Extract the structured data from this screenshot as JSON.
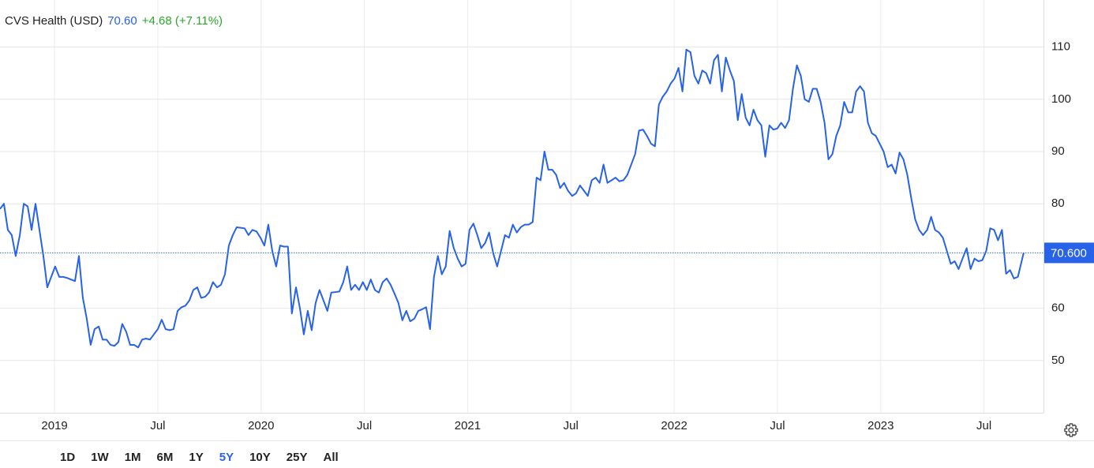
{
  "header": {
    "title": "CVS Health (USD)",
    "price": "70.60",
    "change": "+4.68 (+7.11%)"
  },
  "chart_data": {
    "type": "line",
    "x": [
      2018.736,
      2018.755,
      2018.774,
      2018.793,
      2018.812,
      2018.832,
      2018.851,
      2018.87,
      2018.889,
      2018.908,
      2018.927,
      2018.946,
      2018.965,
      2018.984,
      2019.003,
      2019.023,
      2019.042,
      2019.061,
      2019.08,
      2019.099,
      2019.118,
      2019.137,
      2019.156,
      2019.175,
      2019.194,
      2019.214,
      2019.233,
      2019.252,
      2019.271,
      2019.29,
      2019.309,
      2019.328,
      2019.347,
      2019.366,
      2019.385,
      2019.405,
      2019.424,
      2019.443,
      2019.462,
      2019.481,
      2019.5,
      2019.519,
      2019.538,
      2019.557,
      2019.576,
      2019.596,
      2019.615,
      2019.634,
      2019.653,
      2019.672,
      2019.691,
      2019.71,
      2019.729,
      2019.748,
      2019.767,
      2019.787,
      2019.806,
      2019.825,
      2019.844,
      2019.863,
      2019.882,
      2019.901,
      2019.92,
      2019.939,
      2019.958,
      2019.978,
      2019.997,
      2020.016,
      2020.035,
      2020.054,
      2020.073,
      2020.092,
      2020.111,
      2020.13,
      2020.149,
      2020.169,
      2020.188,
      2020.207,
      2020.226,
      2020.245,
      2020.264,
      2020.283,
      2020.302,
      2020.321,
      2020.34,
      2020.36,
      2020.379,
      2020.398,
      2020.417,
      2020.436,
      2020.455,
      2020.474,
      2020.493,
      2020.512,
      2020.531,
      2020.551,
      2020.57,
      2020.589,
      2020.608,
      2020.627,
      2020.646,
      2020.665,
      2020.684,
      2020.703,
      2020.722,
      2020.742,
      2020.761,
      2020.78,
      2020.799,
      2020.818,
      2020.837,
      2020.856,
      2020.875,
      2020.894,
      2020.913,
      2020.933,
      2020.952,
      2020.971,
      2020.99,
      2021.009,
      2021.028,
      2021.047,
      2021.066,
      2021.085,
      2021.104,
      2021.124,
      2021.143,
      2021.162,
      2021.181,
      2021.2,
      2021.219,
      2021.238,
      2021.257,
      2021.276,
      2021.295,
      2021.315,
      2021.334,
      2021.353,
      2021.372,
      2021.391,
      2021.41,
      2021.429,
      2021.448,
      2021.467,
      2021.486,
      2021.506,
      2021.525,
      2021.544,
      2021.563,
      2021.582,
      2021.601,
      2021.62,
      2021.639,
      2021.658,
      2021.677,
      2021.697,
      2021.716,
      2021.735,
      2021.754,
      2021.773,
      2021.792,
      2021.811,
      2021.83,
      2021.849,
      2021.868,
      2021.888,
      2021.907,
      2021.926,
      2021.945,
      2021.964,
      2021.983,
      2022.002,
      2022.021,
      2022.04,
      2022.059,
      2022.079,
      2022.098,
      2022.117,
      2022.136,
      2022.155,
      2022.174,
      2022.193,
      2022.212,
      2022.231,
      2022.25,
      2022.27,
      2022.289,
      2022.308,
      2022.327,
      2022.346,
      2022.365,
      2022.384,
      2022.403,
      2022.422,
      2022.441,
      2022.461,
      2022.48,
      2022.499,
      2022.518,
      2022.537,
      2022.556,
      2022.575,
      2022.594,
      2022.613,
      2022.632,
      2022.652,
      2022.671,
      2022.69,
      2022.709,
      2022.728,
      2022.747,
      2022.766,
      2022.785,
      2022.804,
      2022.823,
      2022.843,
      2022.862,
      2022.881,
      2022.9,
      2022.919,
      2022.938,
      2022.957,
      2022.976,
      2022.995,
      2023.014,
      2023.034,
      2023.053,
      2023.072,
      2023.091,
      2023.11,
      2023.129,
      2023.148,
      2023.167,
      2023.186,
      2023.205,
      2023.225,
      2023.244,
      2023.263,
      2023.282,
      2023.301,
      2023.32,
      2023.339,
      2023.358,
      2023.377,
      2023.396,
      2023.416,
      2023.435,
      2023.454,
      2023.473,
      2023.492,
      2023.511,
      2023.53,
      2023.549,
      2023.568,
      2023.587,
      2023.607,
      2023.626,
      2023.645,
      2023.664,
      2023.692
    ],
    "series": [
      {
        "color": "#2762e8",
        "values": [
          79,
          80,
          75,
          74,
          70,
          74,
          80,
          79.5,
          75,
          80,
          75,
          70,
          64,
          66,
          68,
          66,
          66,
          65.8,
          65.5,
          65.2,
          70,
          62,
          58,
          53,
          56,
          56.5,
          54,
          54,
          53,
          52.8,
          53.5,
          57,
          55.5,
          53,
          53,
          52.5,
          54,
          54.2,
          54,
          55,
          56,
          57.8,
          56,
          55.8,
          56,
          59.5,
          60.2,
          60.5,
          61.5,
          63.5,
          64,
          62,
          62.2,
          63,
          65,
          64,
          64.5,
          66.5,
          72,
          74,
          75.5,
          75.4,
          75.3,
          74,
          75,
          74.7,
          73.5,
          72,
          76,
          71,
          68,
          72,
          71.8,
          71.8,
          59,
          64,
          60,
          55,
          59.5,
          55.8,
          61,
          63.5,
          61.5,
          59.5,
          63,
          63.1,
          63.2,
          65,
          68,
          63.5,
          64.5,
          63.5,
          65,
          63.5,
          65.5,
          63.5,
          63,
          65,
          65.7,
          64.5,
          62.8,
          61,
          57.7,
          59.5,
          57.5,
          58,
          59.5,
          59.8,
          60.2,
          56,
          66,
          70,
          66.5,
          68,
          74.8,
          71.5,
          69.5,
          68,
          68.5,
          75,
          76.2,
          74,
          71.5,
          72.5,
          74.5,
          70.5,
          68,
          71,
          74,
          73.5,
          76,
          74.5,
          75.5,
          76,
          76,
          76.5,
          85,
          84.5,
          90,
          86.5,
          86.5,
          85.5,
          83,
          84,
          82.5,
          81.5,
          82,
          83.5,
          82.5,
          81.5,
          84.5,
          85,
          84,
          87.5,
          84,
          84.5,
          85,
          84.3,
          84.5,
          85.5,
          87.5,
          89.5,
          94,
          94.2,
          93,
          91.5,
          91,
          99,
          100.5,
          101.5,
          103,
          104,
          106,
          101.5,
          109.5,
          109,
          104.5,
          103,
          105.5,
          105,
          103,
          107.5,
          108.5,
          101.5,
          108,
          105.5,
          103.5,
          96,
          101,
          96.5,
          95,
          98,
          96,
          95,
          89,
          95,
          94.2,
          94.4,
          95.5,
          94.5,
          96,
          102,
          106.5,
          104.5,
          100,
          99.5,
          102,
          102,
          99.5,
          95.5,
          88.5,
          89.5,
          93,
          95,
          99.5,
          97.5,
          97.5,
          101.5,
          102.5,
          101.5,
          95.5,
          93.5,
          93,
          91.5,
          90,
          87,
          87.5,
          85.8,
          89.8,
          88.5,
          85.5,
          81,
          77,
          75,
          74,
          75,
          77.5,
          75,
          74.5,
          73.5,
          71,
          68.5,
          69,
          67.5,
          69.5,
          71.5,
          67.5,
          69.5,
          69,
          69.2,
          71,
          75.3,
          75,
          73,
          75,
          66.6,
          67.3,
          65.7,
          66,
          70.6
        ]
      }
    ],
    "xlim": [
      2018.736,
      2023.788
    ],
    "xticks": [
      {
        "value": 2019,
        "label": "2019"
      },
      {
        "value": 2019.5,
        "label": "Jul"
      },
      {
        "value": 2020,
        "label": "2020"
      },
      {
        "value": 2020.5,
        "label": "Jul"
      },
      {
        "value": 2021,
        "label": "2021"
      },
      {
        "value": 2021.5,
        "label": "Jul"
      },
      {
        "value": 2022,
        "label": "2022"
      },
      {
        "value": 2022.5,
        "label": "Jul"
      },
      {
        "value": 2023,
        "label": "2023"
      },
      {
        "value": 2023.5,
        "label": "Jul"
      }
    ],
    "ylim": [
      40,
      119
    ],
    "yticks": [
      50,
      60,
      80,
      90,
      100,
      110
    ],
    "grid": true,
    "price_line": {
      "value": 70.6,
      "label": "70.600",
      "color": "#2762e8"
    }
  },
  "range_buttons": [
    {
      "label": "1D"
    },
    {
      "label": "1W"
    },
    {
      "label": "1M"
    },
    {
      "label": "6M"
    },
    {
      "label": "1Y"
    },
    {
      "label": "5Y",
      "active": true
    },
    {
      "label": "10Y"
    },
    {
      "label": "25Y"
    },
    {
      "label": "All"
    }
  ]
}
